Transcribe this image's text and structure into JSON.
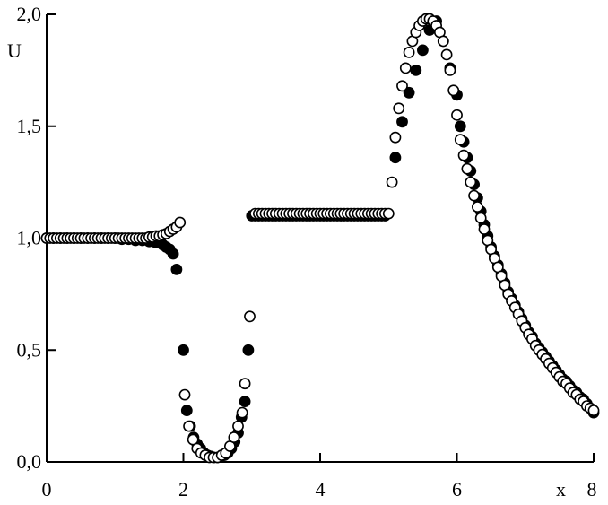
{
  "chart_data": {
    "type": "scatter",
    "title": "",
    "xlabel": "x",
    "ylabel": "U",
    "xlim": [
      0,
      8
    ],
    "ylim": [
      0,
      2
    ],
    "xticks": [
      0,
      2,
      4,
      6,
      8
    ],
    "xtick_labels": [
      "0",
      "2",
      "4",
      "6",
      "8"
    ],
    "yticks": [
      0,
      0.5,
      1,
      1.5,
      2
    ],
    "ytick_labels": [
      "0,0",
      "0,5",
      "1,0",
      "1,5",
      "2,0"
    ],
    "grid": false,
    "legend": "none",
    "series": [
      {
        "marker": "filled-circle",
        "color": "#000000",
        "points": [
          [
            0.0,
            1.0
          ],
          [
            0.1,
            1.0
          ],
          [
            0.2,
            1.0
          ],
          [
            0.3,
            1.0
          ],
          [
            0.4,
            1.0
          ],
          [
            0.5,
            1.0
          ],
          [
            0.6,
            1.0
          ],
          [
            0.7,
            1.0
          ],
          [
            0.8,
            1.0
          ],
          [
            0.9,
            1.0
          ],
          [
            1.0,
            1.0
          ],
          [
            1.1,
            0.995
          ],
          [
            1.2,
            0.995
          ],
          [
            1.3,
            0.99
          ],
          [
            1.4,
            0.99
          ],
          [
            1.5,
            0.985
          ],
          [
            1.6,
            0.98
          ],
          [
            1.7,
            0.97
          ],
          [
            1.75,
            0.96
          ],
          [
            1.8,
            0.95
          ],
          [
            1.85,
            0.93
          ],
          [
            1.9,
            0.86
          ],
          [
            2.0,
            0.5
          ],
          [
            2.05,
            0.23
          ],
          [
            2.1,
            0.16
          ],
          [
            2.15,
            0.11
          ],
          [
            2.2,
            0.08
          ],
          [
            2.25,
            0.06
          ],
          [
            2.3,
            0.04
          ],
          [
            2.35,
            0.03
          ],
          [
            2.4,
            0.025
          ],
          [
            2.45,
            0.02
          ],
          [
            2.5,
            0.02
          ],
          [
            2.55,
            0.025
          ],
          [
            2.6,
            0.03
          ],
          [
            2.65,
            0.04
          ],
          [
            2.7,
            0.06
          ],
          [
            2.75,
            0.09
          ],
          [
            2.8,
            0.13
          ],
          [
            2.85,
            0.2
          ],
          [
            2.9,
            0.27
          ],
          [
            2.95,
            0.5
          ],
          [
            3.0,
            1.1
          ],
          [
            3.05,
            1.1
          ],
          [
            3.1,
            1.1
          ],
          [
            3.15,
            1.1
          ],
          [
            3.2,
            1.1
          ],
          [
            3.25,
            1.1
          ],
          [
            3.3,
            1.1
          ],
          [
            3.35,
            1.1
          ],
          [
            3.4,
            1.1
          ],
          [
            3.45,
            1.1
          ],
          [
            3.5,
            1.1
          ],
          [
            3.55,
            1.1
          ],
          [
            3.6,
            1.1
          ],
          [
            3.65,
            1.1
          ],
          [
            3.7,
            1.1
          ],
          [
            3.75,
            1.1
          ],
          [
            3.8,
            1.1
          ],
          [
            3.85,
            1.1
          ],
          [
            3.9,
            1.1
          ],
          [
            3.95,
            1.1
          ],
          [
            4.0,
            1.1
          ],
          [
            4.05,
            1.1
          ],
          [
            4.1,
            1.1
          ],
          [
            4.15,
            1.1
          ],
          [
            4.2,
            1.1
          ],
          [
            4.25,
            1.1
          ],
          [
            4.3,
            1.1
          ],
          [
            4.35,
            1.1
          ],
          [
            4.4,
            1.1
          ],
          [
            4.45,
            1.1
          ],
          [
            4.5,
            1.1
          ],
          [
            4.55,
            1.1
          ],
          [
            4.6,
            1.1
          ],
          [
            4.65,
            1.1
          ],
          [
            4.7,
            1.1
          ],
          [
            4.75,
            1.1
          ],
          [
            4.8,
            1.1
          ],
          [
            4.85,
            1.1
          ],
          [
            4.9,
            1.1
          ],
          [
            4.95,
            1.1
          ],
          [
            5.1,
            1.36
          ],
          [
            5.2,
            1.52
          ],
          [
            5.3,
            1.65
          ],
          [
            5.4,
            1.75
          ],
          [
            5.5,
            1.84
          ],
          [
            5.6,
            1.93
          ],
          [
            5.7,
            1.97
          ],
          [
            5.8,
            1.88
          ],
          [
            5.9,
            1.76
          ],
          [
            6.0,
            1.64
          ],
          [
            6.05,
            1.5
          ],
          [
            6.1,
            1.43
          ],
          [
            6.15,
            1.36
          ],
          [
            6.2,
            1.3
          ],
          [
            6.25,
            1.24
          ],
          [
            6.3,
            1.18
          ],
          [
            6.35,
            1.12
          ],
          [
            6.4,
            1.06
          ],
          [
            6.45,
            1.01
          ],
          [
            6.5,
            0.96
          ],
          [
            6.55,
            0.92
          ],
          [
            6.6,
            0.88
          ],
          [
            6.65,
            0.84
          ],
          [
            6.7,
            0.8
          ],
          [
            6.75,
            0.76
          ],
          [
            6.8,
            0.73
          ],
          [
            6.85,
            0.7
          ],
          [
            6.9,
            0.67
          ],
          [
            6.95,
            0.64
          ],
          [
            7.0,
            0.61
          ],
          [
            7.05,
            0.58
          ],
          [
            7.1,
            0.56
          ],
          [
            7.15,
            0.53
          ],
          [
            7.2,
            0.51
          ],
          [
            7.25,
            0.49
          ],
          [
            7.3,
            0.47
          ],
          [
            7.35,
            0.45
          ],
          [
            7.4,
            0.43
          ],
          [
            7.45,
            0.41
          ],
          [
            7.5,
            0.39
          ],
          [
            7.55,
            0.37
          ],
          [
            7.6,
            0.36
          ],
          [
            7.65,
            0.34
          ],
          [
            7.7,
            0.32
          ],
          [
            7.75,
            0.31
          ],
          [
            7.8,
            0.29
          ],
          [
            7.85,
            0.28
          ],
          [
            7.9,
            0.26
          ],
          [
            7.95,
            0.24
          ],
          [
            8.0,
            0.22
          ]
        ]
      },
      {
        "marker": "open-circle",
        "color": "#000000",
        "points": [
          [
            0.0,
            1.0
          ],
          [
            0.05,
            1.0
          ],
          [
            0.1,
            1.0
          ],
          [
            0.15,
            1.0
          ],
          [
            0.2,
            1.0
          ],
          [
            0.25,
            1.0
          ],
          [
            0.3,
            1.0
          ],
          [
            0.35,
            1.0
          ],
          [
            0.4,
            1.0
          ],
          [
            0.45,
            1.0
          ],
          [
            0.5,
            1.0
          ],
          [
            0.55,
            1.0
          ],
          [
            0.6,
            1.0
          ],
          [
            0.65,
            1.0
          ],
          [
            0.7,
            1.0
          ],
          [
            0.75,
            1.0
          ],
          [
            0.8,
            1.0
          ],
          [
            0.85,
            1.0
          ],
          [
            0.9,
            1.0
          ],
          [
            0.95,
            1.0
          ],
          [
            1.0,
            1.0
          ],
          [
            1.05,
            1.0
          ],
          [
            1.1,
            1.0
          ],
          [
            1.15,
            1.0
          ],
          [
            1.2,
            1.0
          ],
          [
            1.25,
            1.0
          ],
          [
            1.3,
            1.0
          ],
          [
            1.35,
            1.0
          ],
          [
            1.4,
            1.0
          ],
          [
            1.45,
            1.0
          ],
          [
            1.5,
            1.005
          ],
          [
            1.55,
            1.005
          ],
          [
            1.6,
            1.01
          ],
          [
            1.65,
            1.01
          ],
          [
            1.7,
            1.015
          ],
          [
            1.75,
            1.02
          ],
          [
            1.8,
            1.03
          ],
          [
            1.85,
            1.04
          ],
          [
            1.9,
            1.05
          ],
          [
            1.95,
            1.07
          ],
          [
            2.02,
            0.3
          ],
          [
            2.08,
            0.16
          ],
          [
            2.14,
            0.1
          ],
          [
            2.2,
            0.06
          ],
          [
            2.26,
            0.04
          ],
          [
            2.32,
            0.03
          ],
          [
            2.38,
            0.02
          ],
          [
            2.44,
            0.02
          ],
          [
            2.5,
            0.02
          ],
          [
            2.56,
            0.03
          ],
          [
            2.62,
            0.04
          ],
          [
            2.68,
            0.07
          ],
          [
            2.74,
            0.11
          ],
          [
            2.8,
            0.16
          ],
          [
            2.86,
            0.22
          ],
          [
            2.9,
            0.35
          ],
          [
            2.97,
            0.65
          ],
          [
            3.05,
            1.11
          ],
          [
            3.1,
            1.11
          ],
          [
            3.15,
            1.11
          ],
          [
            3.2,
            1.11
          ],
          [
            3.25,
            1.11
          ],
          [
            3.3,
            1.11
          ],
          [
            3.35,
            1.11
          ],
          [
            3.4,
            1.11
          ],
          [
            3.45,
            1.11
          ],
          [
            3.5,
            1.11
          ],
          [
            3.55,
            1.11
          ],
          [
            3.6,
            1.11
          ],
          [
            3.65,
            1.11
          ],
          [
            3.7,
            1.11
          ],
          [
            3.75,
            1.11
          ],
          [
            3.8,
            1.11
          ],
          [
            3.85,
            1.11
          ],
          [
            3.9,
            1.11
          ],
          [
            3.95,
            1.11
          ],
          [
            4.0,
            1.11
          ],
          [
            4.05,
            1.11
          ],
          [
            4.1,
            1.11
          ],
          [
            4.15,
            1.11
          ],
          [
            4.2,
            1.11
          ],
          [
            4.25,
            1.11
          ],
          [
            4.3,
            1.11
          ],
          [
            4.35,
            1.11
          ],
          [
            4.4,
            1.11
          ],
          [
            4.45,
            1.11
          ],
          [
            4.5,
            1.11
          ],
          [
            4.55,
            1.11
          ],
          [
            4.6,
            1.11
          ],
          [
            4.65,
            1.11
          ],
          [
            4.7,
            1.11
          ],
          [
            4.75,
            1.11
          ],
          [
            4.8,
            1.11
          ],
          [
            4.85,
            1.11
          ],
          [
            4.9,
            1.11
          ],
          [
            4.95,
            1.11
          ],
          [
            5.0,
            1.11
          ],
          [
            5.05,
            1.25
          ],
          [
            5.1,
            1.45
          ],
          [
            5.15,
            1.58
          ],
          [
            5.2,
            1.68
          ],
          [
            5.25,
            1.76
          ],
          [
            5.3,
            1.83
          ],
          [
            5.35,
            1.88
          ],
          [
            5.4,
            1.92
          ],
          [
            5.45,
            1.95
          ],
          [
            5.5,
            1.97
          ],
          [
            5.55,
            1.98
          ],
          [
            5.6,
            1.98
          ],
          [
            5.65,
            1.97
          ],
          [
            5.7,
            1.95
          ],
          [
            5.75,
            1.92
          ],
          [
            5.8,
            1.88
          ],
          [
            5.85,
            1.82
          ],
          [
            5.9,
            1.75
          ],
          [
            5.95,
            1.66
          ],
          [
            6.0,
            1.55
          ],
          [
            6.05,
            1.44
          ],
          [
            6.1,
            1.37
          ],
          [
            6.15,
            1.31
          ],
          [
            6.2,
            1.25
          ],
          [
            6.25,
            1.19
          ],
          [
            6.3,
            1.14
          ],
          [
            6.35,
            1.09
          ],
          [
            6.4,
            1.04
          ],
          [
            6.45,
            0.99
          ],
          [
            6.5,
            0.95
          ],
          [
            6.55,
            0.91
          ],
          [
            6.6,
            0.87
          ],
          [
            6.65,
            0.83
          ],
          [
            6.7,
            0.79
          ],
          [
            6.75,
            0.75
          ],
          [
            6.8,
            0.72
          ],
          [
            6.85,
            0.69
          ],
          [
            6.9,
            0.66
          ],
          [
            6.95,
            0.63
          ],
          [
            7.0,
            0.6
          ],
          [
            7.05,
            0.57
          ],
          [
            7.1,
            0.55
          ],
          [
            7.15,
            0.52
          ],
          [
            7.2,
            0.5
          ],
          [
            7.25,
            0.48
          ],
          [
            7.3,
            0.46
          ],
          [
            7.35,
            0.44
          ],
          [
            7.4,
            0.42
          ],
          [
            7.45,
            0.4
          ],
          [
            7.5,
            0.38
          ],
          [
            7.55,
            0.36
          ],
          [
            7.6,
            0.35
          ],
          [
            7.65,
            0.33
          ],
          [
            7.7,
            0.31
          ],
          [
            7.75,
            0.3
          ],
          [
            7.8,
            0.28
          ],
          [
            7.85,
            0.27
          ],
          [
            7.9,
            0.25
          ],
          [
            7.95,
            0.24
          ],
          [
            8.0,
            0.23
          ]
        ]
      }
    ]
  }
}
